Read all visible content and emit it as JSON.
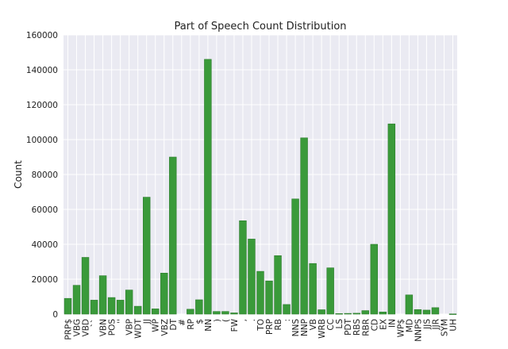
{
  "chart_data": {
    "type": "bar",
    "title": "Part of Speech Count Distribution",
    "xlabel": "",
    "ylabel": "Count",
    "ylim": [
      0,
      160000
    ],
    "yticks": [
      0,
      20000,
      40000,
      60000,
      80000,
      100000,
      120000,
      140000,
      160000
    ],
    "grid": true,
    "legend": "none",
    "bar_color": "#3a9a3a",
    "bar_edge_color": "#2e7d2e",
    "plot_background": "#eaeaf2",
    "grid_color": "#ffffff",
    "categories": [
      "PRP$",
      "VBG",
      "VBD",
      "``",
      "VBN",
      "POS",
      "''",
      "VBP",
      "WDT",
      "JJ",
      "WP",
      "VBZ",
      "DT",
      "#",
      "RP",
      "$",
      "NN",
      ")",
      "(",
      "FW",
      ",",
      ".",
      "TO",
      "PRP",
      "RB",
      ":",
      "NNS",
      "NNP",
      "VB",
      "WRB",
      "CC",
      "LS",
      "PDT",
      "RBS",
      "RBR",
      "CD",
      "EX",
      "IN",
      "WP$",
      "MD",
      "NNPS",
      "JJS",
      "JJR",
      "SYM",
      "UH"
    ],
    "values": [
      9000,
      16500,
      32500,
      8000,
      22000,
      9500,
      8000,
      13800,
      4500,
      67000,
      3000,
      23500,
      90000,
      0,
      2800,
      8200,
      146000,
      1500,
      1500,
      700,
      53500,
      43000,
      24500,
      19000,
      33500,
      5500,
      66000,
      101000,
      29000,
      2500,
      26500,
      300,
      400,
      500,
      2000,
      40000,
      1200,
      109000,
      0,
      11000,
      2600,
      2300,
      3700,
      0,
      100
    ]
  }
}
